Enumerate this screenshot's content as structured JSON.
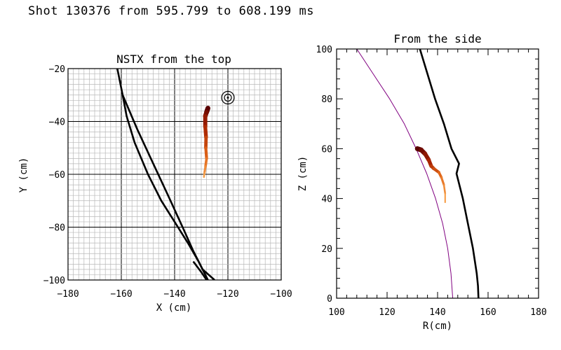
{
  "page_title": "Shot 130376 from 595.799 to 608.199 ms",
  "chart_data": [
    {
      "type": "line",
      "title": "NSTX from the top",
      "xlabel": "X (cm)",
      "ylabel": "Y (cm)",
      "xlim": [
        -180,
        -100
      ],
      "ylim": [
        -100,
        -20
      ],
      "xticks": [
        -180,
        -160,
        -140,
        -120,
        -100
      ],
      "yticks": [
        -100,
        -80,
        -60,
        -40,
        -20
      ],
      "grid": "on (minor grid every 2 cm, major every 20 cm)",
      "series": [
        {
          "color": "#000000",
          "x": [
            -161.5,
            -160.5,
            -159.5,
            -158,
            -155,
            -150,
            -145,
            -140,
            -135,
            -131,
            -127.5
          ],
          "y": [
            -20,
            -25,
            -30,
            -38,
            -48,
            -60,
            -70,
            -78,
            -86,
            -93,
            -100
          ]
        },
        {
          "color": "#000000",
          "x": [
            -159.5,
            -154,
            -148,
            -142,
            -137,
            -133,
            -129.5,
            -125
          ],
          "y": [
            -30,
            -43,
            -56,
            -69,
            -80,
            -89,
            -96,
            -100
          ]
        },
        {
          "color": "#000000",
          "x": [
            -133,
            -130,
            -128
          ],
          "y": [
            -93,
            -97,
            -100
          ]
        }
      ],
      "trajectory": {
        "gradient_colors": [
          "#5a0000",
          "#a82400",
          "#e0661a",
          "#f7a14c"
        ],
        "x": [
          -127.5,
          -128,
          -128.5,
          -128.5,
          -128.2,
          -128.3,
          -128,
          -128.4,
          -128.8,
          -129
        ],
        "y": [
          -35,
          -36.5,
          -38,
          -42,
          -46,
          -50,
          -54,
          -57,
          -59.5,
          -61
        ]
      },
      "marker": {
        "type": "concentric-circles",
        "x": -120,
        "y": -31
      }
    },
    {
      "type": "line",
      "title": "From the side",
      "xlabel": "R(cm)",
      "ylabel": "Z (cm)",
      "xlim": [
        100,
        180
      ],
      "ylim": [
        0,
        100
      ],
      "xticks": [
        100,
        120,
        140,
        160,
        180
      ],
      "yticks": [
        0,
        20,
        40,
        60,
        80,
        100
      ],
      "grid": "off",
      "series": [
        {
          "color": "#800080",
          "x": [
            108,
            114.5,
            121,
            126.8,
            131.5,
            135.7,
            139.2,
            142,
            144,
            145.3,
            146
          ],
          "y": [
            100,
            90,
            80,
            70,
            60,
            50,
            40,
            30,
            20,
            10,
            0
          ]
        },
        {
          "color": "#000000",
          "x": [
            133,
            136,
            139,
            142.5,
            145.5,
            148.5,
            147.5,
            150,
            152,
            154,
            155.5,
            156,
            156.2
          ],
          "y": [
            100,
            90,
            80,
            70,
            60,
            54,
            50,
            40,
            30,
            20,
            10,
            5,
            0
          ]
        }
      ],
      "trajectory": {
        "gradient_colors": [
          "#5a0000",
          "#a82400",
          "#e0661a",
          "#f7a14c"
        ],
        "x": [
          132,
          133.5,
          135,
          136.5,
          137.5,
          138.5,
          140.5,
          141.5,
          142.5,
          143,
          143
        ],
        "y": [
          60,
          59.5,
          58,
          55.5,
          53,
          52,
          50.5,
          48.5,
          45.5,
          42,
          38.5
        ]
      }
    }
  ]
}
